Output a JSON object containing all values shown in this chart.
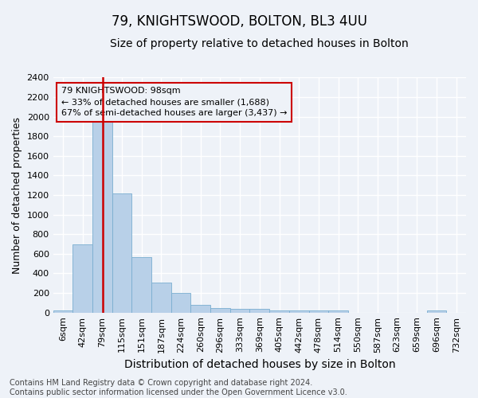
{
  "title": "79, KNIGHTSWOOD, BOLTON, BL3 4UU",
  "subtitle": "Size of property relative to detached houses in Bolton",
  "xlabel": "Distribution of detached houses by size in Bolton",
  "ylabel": "Number of detached properties",
  "bar_labels": [
    "6sqm",
    "42sqm",
    "79sqm",
    "115sqm",
    "151sqm",
    "187sqm",
    "224sqm",
    "260sqm",
    "296sqm",
    "333sqm",
    "369sqm",
    "405sqm",
    "442sqm",
    "478sqm",
    "514sqm",
    "550sqm",
    "587sqm",
    "623sqm",
    "659sqm",
    "696sqm",
    "732sqm"
  ],
  "bar_values": [
    20,
    700,
    1950,
    1220,
    570,
    305,
    200,
    80,
    45,
    35,
    35,
    20,
    20,
    20,
    20,
    0,
    0,
    0,
    0,
    25,
    0
  ],
  "bar_color": "#b8d0e8",
  "bar_edge_color": "#7aaed0",
  "ylim": [
    0,
    2400
  ],
  "yticks": [
    0,
    200,
    400,
    600,
    800,
    1000,
    1200,
    1400,
    1600,
    1800,
    2000,
    2200,
    2400
  ],
  "vline_color": "#cc0000",
  "annotation_line1": "79 KNIGHTSWOOD: 98sqm",
  "annotation_line2": "← 33% of detached houses are smaller (1,688)",
  "annotation_line3": "67% of semi-detached houses are larger (3,437) →",
  "annotation_box_color": "#cc0000",
  "footer_text": "Contains HM Land Registry data © Crown copyright and database right 2024.\nContains public sector information licensed under the Open Government Licence v3.0.",
  "bg_color": "#eef2f8",
  "grid_color": "#ffffff",
  "title_fontsize": 12,
  "subtitle_fontsize": 10,
  "xlabel_fontsize": 10,
  "ylabel_fontsize": 9,
  "tick_fontsize": 8,
  "annotation_fontsize": 8,
  "footer_fontsize": 7
}
